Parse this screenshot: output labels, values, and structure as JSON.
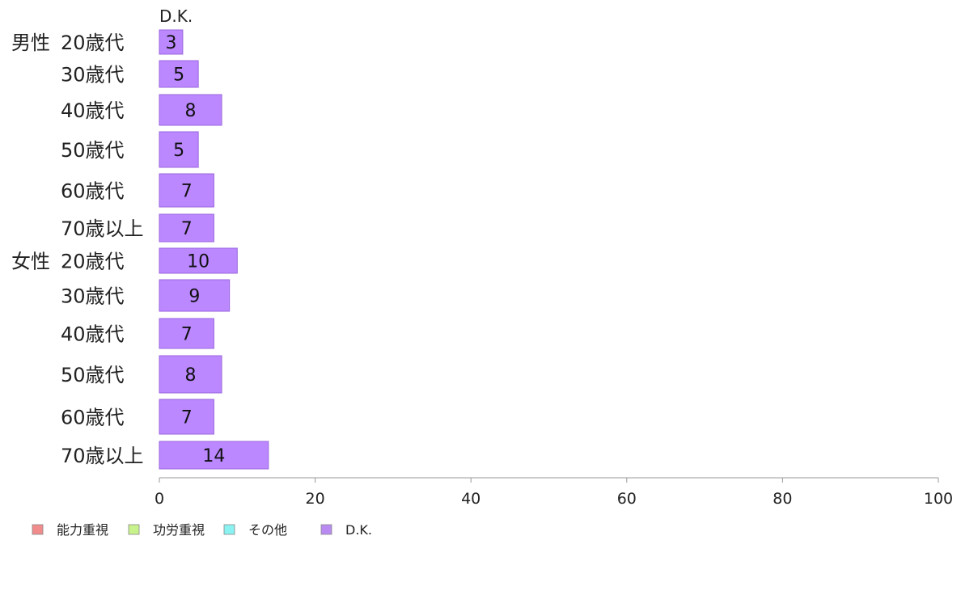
{
  "chart_data": {
    "type": "bar",
    "orientation": "horizontal",
    "series_title": "D.K.",
    "groups": [
      {
        "label": "男性",
        "categories": [
          "20歳代",
          "30歳代",
          "40歳代",
          "50歳代",
          "60歳代",
          "70歳以上"
        ],
        "values": [
          3,
          5,
          8,
          5,
          7,
          7
        ]
      },
      {
        "label": "女性",
        "categories": [
          "20歳代",
          "30歳代",
          "40歳代",
          "50歳代",
          "60歳代",
          "70歳以上"
        ],
        "values": [
          10,
          9,
          7,
          8,
          7,
          14
        ]
      }
    ],
    "xlim": [
      0,
      100
    ],
    "xticks": [
      0,
      20,
      40,
      60,
      80,
      100
    ],
    "legend_position": "bottom-left",
    "legend": [
      {
        "name": "能力重視",
        "color": "#f28b8b"
      },
      {
        "name": "功労重視",
        "color": "#c8f28b"
      },
      {
        "name": "その他",
        "color": "#8bf2f2"
      },
      {
        "name": "D.K.",
        "color": "#b98bf2"
      }
    ],
    "bar_color": "#bb88ff",
    "bar_stroke": "#9a66dd",
    "axis_color": "#999999"
  }
}
